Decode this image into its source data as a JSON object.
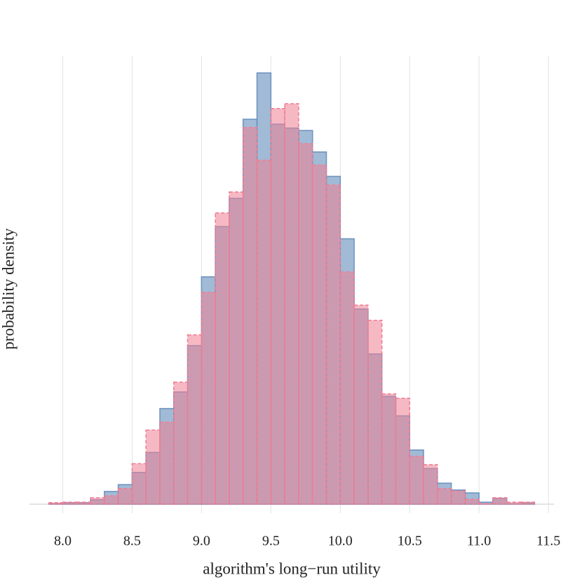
{
  "chart_data": {
    "type": "histogram",
    "xlabel": "algorithm's long−run utility",
    "ylabel": "probability density",
    "bins": [
      7.9,
      8.0,
      8.1,
      8.2,
      8.3,
      8.4,
      8.5,
      8.6,
      8.7,
      8.8,
      8.9,
      9.0,
      9.1,
      9.2,
      9.3,
      9.4,
      9.5,
      9.6,
      9.7,
      9.8,
      9.9,
      10.0,
      10.1,
      10.2,
      10.3,
      10.4,
      10.5,
      10.6,
      10.7,
      10.8,
      10.9,
      11.0,
      11.1,
      11.2,
      11.3,
      11.4
    ],
    "series": [
      {
        "color": "#6f95c0",
        "linestyle": "solid",
        "values": [
          0.001,
          0.003,
          0.003,
          0.009,
          0.026,
          0.04,
          0.065,
          0.106,
          0.196,
          0.23,
          0.325,
          0.466,
          0.569,
          0.627,
          0.789,
          0.884,
          0.779,
          0.771,
          0.766,
          0.722,
          0.672,
          0.544,
          0.4,
          0.308,
          0.221,
          0.181,
          0.111,
          0.073,
          0.043,
          0.029,
          0.023,
          0.004,
          0.012,
          0.001,
          0.003
        ]
      },
      {
        "color": "#ef7f93",
        "linestyle": "dashed",
        "values": [
          0.003,
          0.004,
          0.004,
          0.013,
          0.017,
          0.032,
          0.083,
          0.152,
          0.168,
          0.25,
          0.347,
          0.434,
          0.597,
          0.64,
          0.772,
          0.705,
          0.811,
          0.821,
          0.739,
          0.695,
          0.654,
          0.476,
          0.408,
          0.377,
          0.226,
          0.217,
          0.098,
          0.081,
          0.032,
          0.027,
          0.01,
          0.001,
          0.013,
          0.004,
          0.004
        ]
      }
    ],
    "xlim": [
      7.76,
      11.54
    ],
    "xticks": [
      {
        "value": 8,
        "label": "8.0"
      },
      8.5,
      {
        "value": 9,
        "label": "9.0"
      },
      9.5,
      {
        "value": 10,
        "label": "10.0"
      },
      10.5,
      {
        "value": 11,
        "label": "11.0"
      },
      11.5
    ],
    "ylim": [
      0,
      0.92
    ],
    "grid": true
  }
}
